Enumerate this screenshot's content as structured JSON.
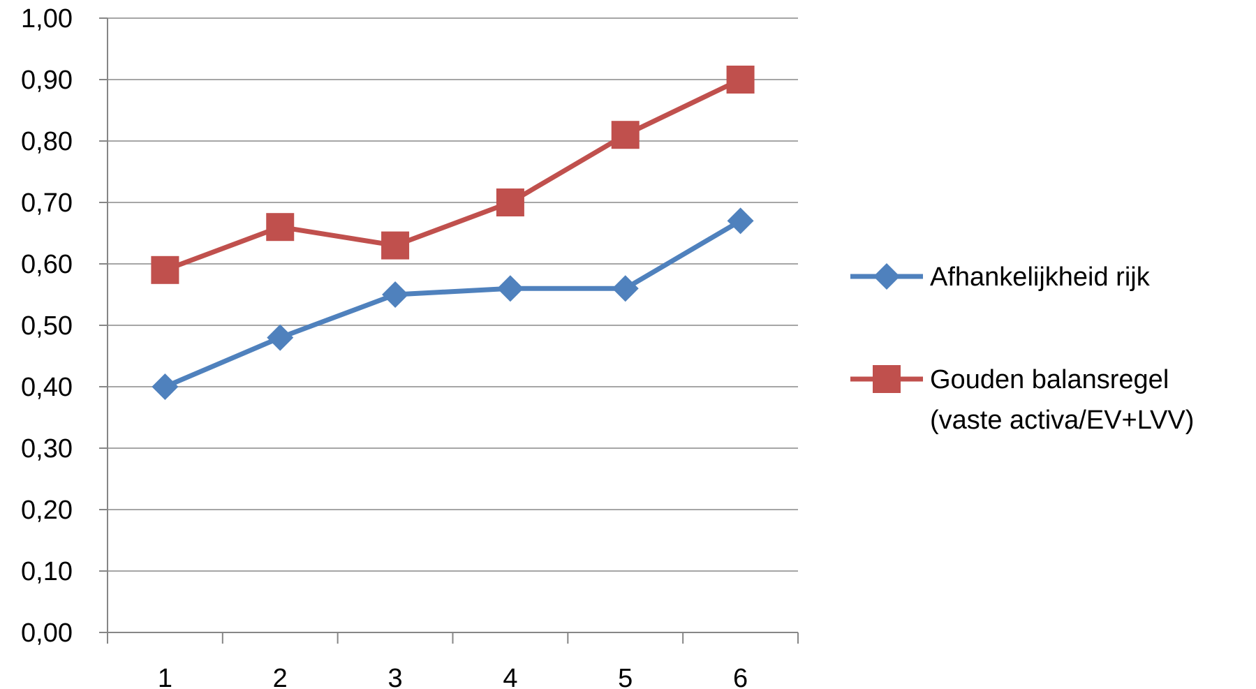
{
  "chart_data": {
    "type": "line",
    "categories": [
      "1",
      "2",
      "3",
      "4",
      "5",
      "6"
    ],
    "series": [
      {
        "name": "Afhankelijkheid rijk",
        "values": [
          0.4,
          0.48,
          0.55,
          0.56,
          0.56,
          0.67
        ],
        "color": "#4F81BD",
        "marker": "diamond"
      },
      {
        "name": "Gouden balansregel (vaste activa/EV+LVV)",
        "name_lines": [
          "Gouden balansregel",
          "(vaste activa/EV+LVV)"
        ],
        "values": [
          0.59,
          0.66,
          0.63,
          0.7,
          0.81,
          0.9
        ],
        "color": "#C0504D",
        "marker": "square"
      }
    ],
    "yticks": [
      "0,00",
      "0,10",
      "0,20",
      "0,30",
      "0,40",
      "0,50",
      "0,60",
      "0,70",
      "0,80",
      "0,90",
      "1,00"
    ],
    "ylim": [
      0,
      1
    ],
    "title": "",
    "xlabel": "",
    "ylabel": "",
    "grid": true,
    "legend_position": "right",
    "gridline_color": "#A6A6A6"
  }
}
